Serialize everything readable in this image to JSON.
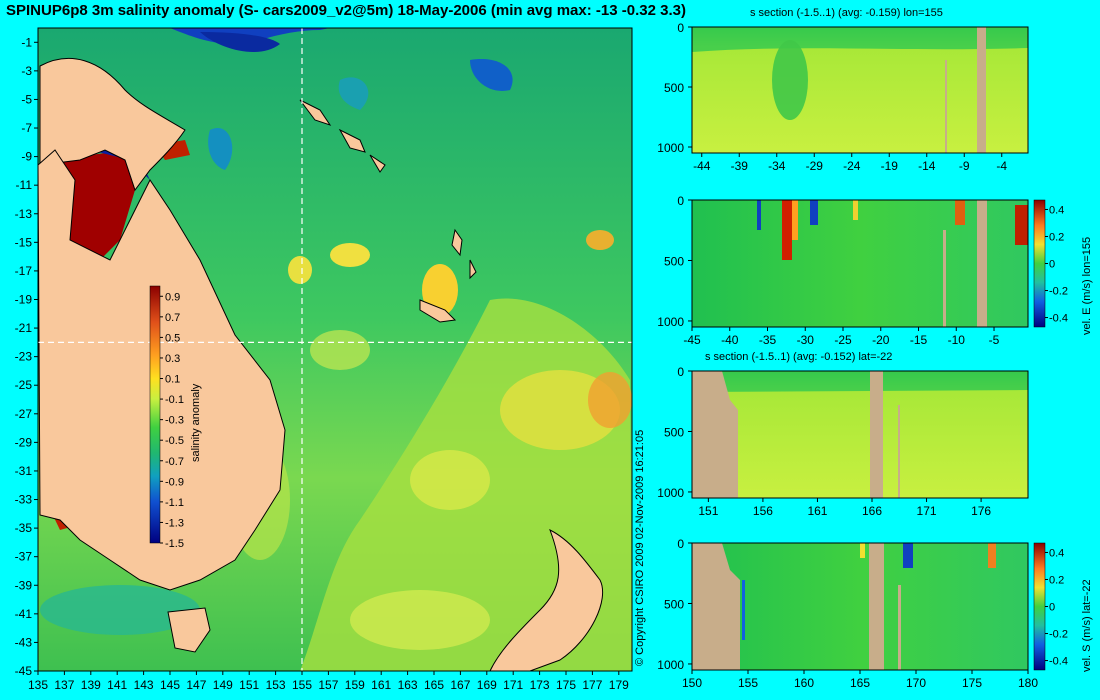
{
  "title": "SPINUP6p8 3m salinity anomaly (S- cars2009_v2@5m) 18-May-2006 (min avg max: -13 -0.32 3.3)",
  "copyright": "© Copyright CSIRO 2009   02-Nov-2009 16:21:05",
  "colors": {
    "background": "#00ffff",
    "land": "#f9c89c",
    "section_land": "#c8ad8a",
    "ocean": "#4fcf55",
    "guide": "#ffffff"
  },
  "chart_data": [
    {
      "type": "heatmap",
      "name": "salinity-map",
      "x_ticks": [
        "135",
        "137",
        "139",
        "141",
        "143",
        "145",
        "147",
        "149",
        "151",
        "153",
        "155",
        "157",
        "159",
        "161",
        "163",
        "165",
        "167",
        "169",
        "171",
        "173",
        "175",
        "177",
        "179"
      ],
      "y_ticks": [
        "-1",
        "-3",
        "-5",
        "-7",
        "-9",
        "-11",
        "-13",
        "-15",
        "-17",
        "-19",
        "-21",
        "-23",
        "-25",
        "-27",
        "-29",
        "-31",
        "-33",
        "-35",
        "-37",
        "-39",
        "-41",
        "-43",
        "-45"
      ],
      "xlim": [
        135,
        180
      ],
      "ylim": [
        -45,
        0
      ],
      "section_lon": 155,
      "section_lat": -22,
      "colorbar": {
        "label": "salinity anomaly",
        "ticks": [
          "0.9",
          "0.7",
          "0.5",
          "0.3",
          "0.1",
          "-0.1",
          "-0.3",
          "-0.5",
          "-0.7",
          "-0.9",
          "-1.1",
          "-1.3",
          "-1.5"
        ],
        "range": [
          -1.5,
          1.0
        ]
      }
    },
    {
      "type": "heatmap",
      "name": "s-section-lon",
      "title": "s section (-1.5..1) (avg: -0.159) lon=155",
      "x_ticks": [
        "-44",
        "-39",
        "-34",
        "-29",
        "-24",
        "-19",
        "-14",
        "-9",
        "-4"
      ],
      "y_ticks": [
        "0",
        "500",
        "1000"
      ]
    },
    {
      "type": "heatmap",
      "name": "vel-e-section",
      "x_ticks": [
        "-45",
        "-40",
        "-35",
        "-30",
        "-25",
        "-20",
        "-15",
        "-10",
        "-5"
      ],
      "y_ticks": [
        "0",
        "500",
        "1000"
      ],
      "colorbar": {
        "label": "vel. E (m/s) lon=155",
        "ticks": [
          "0.4",
          "0.2",
          "0",
          "-0.2",
          "-0.4"
        ]
      }
    },
    {
      "type": "heatmap",
      "name": "s-section-lat",
      "title": "s section (-1.5..1) (avg: -0.152) lat=-22",
      "x_ticks": [
        "151",
        "156",
        "161",
        "166",
        "171",
        "176"
      ],
      "y_ticks": [
        "0",
        "500",
        "1000"
      ]
    },
    {
      "type": "heatmap",
      "name": "vel-s-section",
      "x_ticks": [
        "150",
        "155",
        "160",
        "165",
        "170",
        "175",
        "180"
      ],
      "y_ticks": [
        "0",
        "500",
        "1000"
      ],
      "colorbar": {
        "label": "vel. S (m/s) lat=-22",
        "ticks": [
          "0.4",
          "0.2",
          "0",
          "-0.2",
          "-0.4"
        ]
      }
    }
  ]
}
